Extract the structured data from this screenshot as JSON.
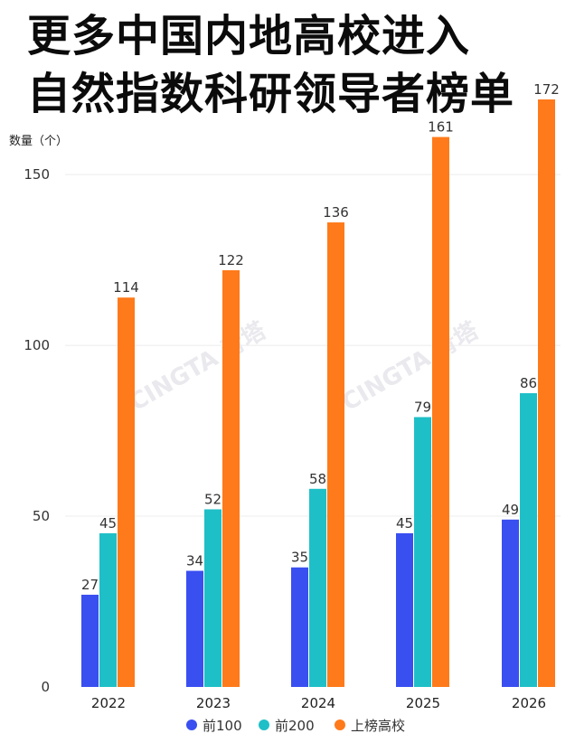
{
  "title_lines": [
    "更多中国内地高校进入",
    "自然指数科研领导者榜单"
  ],
  "watermarks": [
    "CINGTA 青塔",
    "CINGTA 青塔"
  ],
  "chart_data": {
    "type": "bar",
    "title": "更多中国内地高校进入自然指数科研领导者榜单",
    "ylabel": "数量（个）",
    "xlabel": "",
    "categories": [
      "2022",
      "2023",
      "2024",
      "2025",
      "2026"
    ],
    "series": [
      {
        "name": "前100",
        "values": [
          27,
          34,
          35,
          45,
          49
        ],
        "color": "#3a4ff0"
      },
      {
        "name": "前200",
        "values": [
          45,
          52,
          58,
          79,
          86
        ],
        "color": "#1fbfc7"
      },
      {
        "name": "上榜高校",
        "values": [
          114,
          122,
          136,
          161,
          172
        ],
        "color": "#ff7a1a"
      }
    ],
    "yticks": [
      0,
      50,
      100,
      150
    ],
    "ylim": [
      0,
      172
    ],
    "grid": true,
    "legend": "bottom-center",
    "data_labels": true
  }
}
